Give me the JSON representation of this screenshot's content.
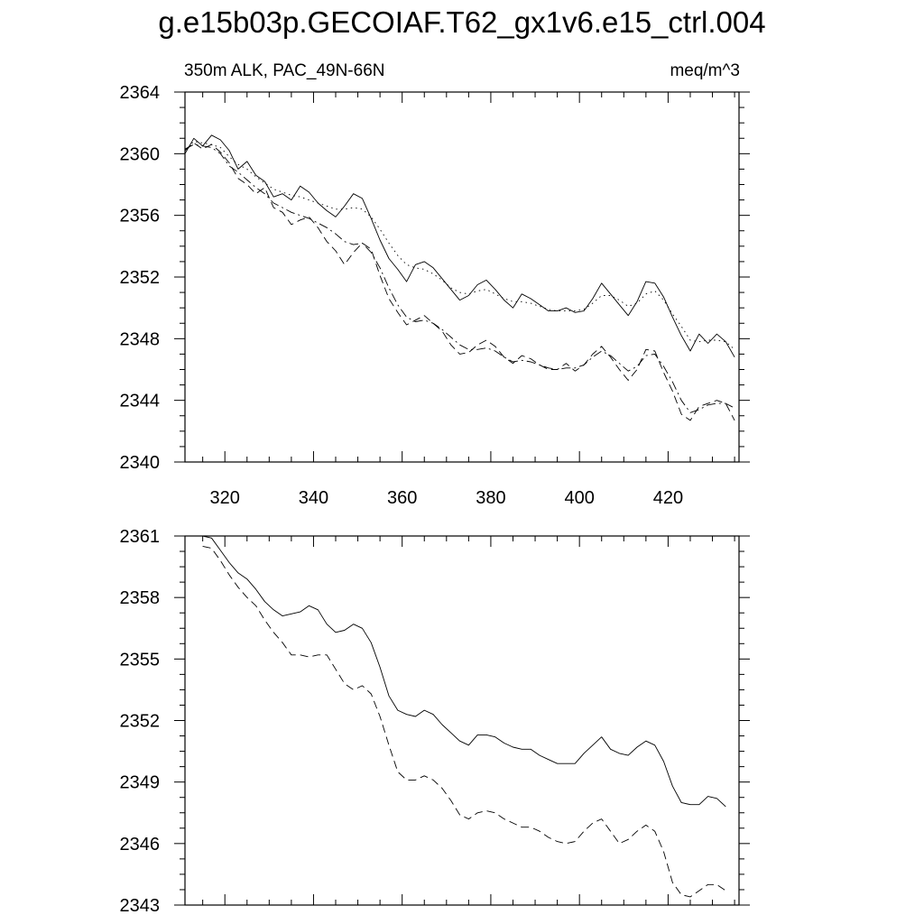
{
  "title": "g.e15b03p.GECOIAF.T62_gx1v6.e15_ctrl.004",
  "chart_data": [
    {
      "type": "line",
      "subtitle_left": "350m ALK, PAC_49N-66N",
      "subtitle_right": "meq/m^3",
      "xlim": [
        311,
        436
      ],
      "ylim": [
        2340,
        2364
      ],
      "xticks": [
        320,
        340,
        360,
        380,
        400,
        420
      ],
      "xtick_labels": [
        "320",
        "340",
        "360",
        "380",
        "400",
        "420"
      ],
      "yticks": [
        2340,
        2344,
        2348,
        2352,
        2356,
        2360,
        2364
      ],
      "ytick_labels": [
        "2340",
        "2344",
        "2348",
        "2352",
        "2356",
        "2360",
        "2364"
      ],
      "x": [
        311,
        313,
        315,
        317,
        319,
        321,
        323,
        325,
        327,
        329,
        331,
        333,
        335,
        337,
        339,
        341,
        343,
        345,
        347,
        349,
        351,
        353,
        355,
        357,
        359,
        361,
        363,
        365,
        367,
        369,
        371,
        373,
        375,
        377,
        379,
        381,
        383,
        385,
        387,
        389,
        391,
        393,
        395,
        397,
        399,
        401,
        403,
        405,
        407,
        409,
        411,
        413,
        415,
        417,
        419,
        421,
        423,
        425,
        427,
        429,
        431,
        433,
        435
      ],
      "series": [
        {
          "style": "solid",
          "values": [
            2360.0,
            2361.0,
            2360.5,
            2361.2,
            2360.9,
            2360.2,
            2359.0,
            2359.5,
            2358.6,
            2358.2,
            2357.2,
            2357.4,
            2357.0,
            2357.9,
            2357.5,
            2356.8,
            2356.3,
            2355.9,
            2356.6,
            2357.4,
            2357.1,
            2355.8,
            2354.4,
            2353.2,
            2352.5,
            2351.7,
            2352.8,
            2353.0,
            2352.6,
            2351.9,
            2351.2,
            2350.5,
            2350.8,
            2351.5,
            2351.8,
            2351.2,
            2350.5,
            2350.0,
            2350.9,
            2350.6,
            2350.2,
            2349.8,
            2349.8,
            2350.0,
            2349.7,
            2349.8,
            2350.6,
            2351.6,
            2350.9,
            2350.2,
            2349.5,
            2350.4,
            2351.7,
            2351.6,
            2350.7,
            2349.4,
            2348.2,
            2347.2,
            2348.3,
            2347.7,
            2348.3,
            2347.8,
            2346.8
          ]
        },
        {
          "style": "dotted",
          "values": [
            2360.2,
            2360.8,
            2360.7,
            2360.6,
            2360.4,
            2359.8,
            2359.3,
            2359.0,
            2358.5,
            2358.1,
            2357.7,
            2357.5,
            2357.3,
            2357.2,
            2357.0,
            2356.8,
            2356.6,
            2356.4,
            2356.4,
            2356.5,
            2356.4,
            2355.9,
            2355.1,
            2354.2,
            2353.4,
            2352.8,
            2352.6,
            2352.5,
            2352.2,
            2351.8,
            2351.3,
            2351.0,
            2350.9,
            2351.1,
            2351.2,
            2350.9,
            2350.6,
            2350.4,
            2350.4,
            2350.3,
            2350.1,
            2349.9,
            2349.8,
            2349.8,
            2349.8,
            2349.9,
            2350.3,
            2350.8,
            2350.8,
            2350.5,
            2350.1,
            2350.3,
            2350.9,
            2351.1,
            2350.5,
            2349.6,
            2348.8,
            2347.9,
            2347.8,
            2347.9,
            2347.9,
            2347.8,
            2347.3
          ]
        },
        {
          "style": "dashed",
          "values": [
            2360.2,
            2360.7,
            2360.3,
            2360.6,
            2360.1,
            2359.4,
            2358.4,
            2358.0,
            2357.4,
            2357.8,
            2356.5,
            2356.2,
            2355.4,
            2355.7,
            2355.9,
            2355.2,
            2354.3,
            2353.7,
            2352.8,
            2353.6,
            2354.2,
            2353.8,
            2352.1,
            2350.6,
            2349.7,
            2348.9,
            2349.2,
            2349.5,
            2349.0,
            2348.5,
            2347.6,
            2347.0,
            2347.1,
            2347.6,
            2347.9,
            2347.5,
            2346.8,
            2346.4,
            2346.9,
            2346.7,
            2346.3,
            2346.0,
            2346.0,
            2346.4,
            2345.9,
            2346.3,
            2347.0,
            2347.5,
            2346.8,
            2346.0,
            2345.3,
            2346.0,
            2347.3,
            2347.2,
            2345.8,
            2344.6,
            2343.1,
            2342.7,
            2343.6,
            2343.8,
            2344.0,
            2343.8,
            2342.7
          ]
        },
        {
          "style": "dashdot",
          "values": [
            2360.3,
            2360.6,
            2360.5,
            2360.4,
            2360.0,
            2359.2,
            2358.8,
            2358.3,
            2357.8,
            2357.4,
            2356.8,
            2356.5,
            2356.2,
            2356.0,
            2355.8,
            2355.5,
            2355.2,
            2354.8,
            2354.3,
            2354.1,
            2354.2,
            2353.6,
            2352.6,
            2351.3,
            2350.2,
            2349.4,
            2349.1,
            2349.2,
            2349.0,
            2348.6,
            2348.1,
            2347.6,
            2347.3,
            2347.3,
            2347.4,
            2347.2,
            2346.8,
            2346.5,
            2346.6,
            2346.5,
            2346.3,
            2346.1,
            2346.0,
            2346.1,
            2346.1,
            2346.3,
            2346.8,
            2347.2,
            2346.9,
            2346.4,
            2345.9,
            2346.2,
            2346.9,
            2347.0,
            2346.2,
            2345.2,
            2344.0,
            2343.2,
            2343.4,
            2343.7,
            2343.8,
            2343.8,
            2343.5
          ]
        }
      ]
    },
    {
      "type": "line",
      "xlim": [
        311,
        436
      ],
      "ylim": [
        2343,
        2361
      ],
      "xticks": [
        320,
        340,
        360,
        380,
        400,
        420
      ],
      "yticks": [
        2343,
        2346,
        2349,
        2352,
        2355,
        2358,
        2361
      ],
      "ytick_labels": [
        "2343",
        "2346",
        "2349",
        "2352",
        "2355",
        "2358",
        "2361"
      ],
      "x": [
        315,
        317,
        319,
        321,
        323,
        325,
        327,
        329,
        331,
        333,
        335,
        337,
        339,
        341,
        343,
        345,
        347,
        349,
        351,
        353,
        355,
        357,
        359,
        361,
        363,
        365,
        367,
        369,
        371,
        373,
        375,
        377,
        379,
        381,
        383,
        385,
        387,
        389,
        391,
        393,
        395,
        397,
        399,
        401,
        403,
        405,
        407,
        409,
        411,
        413,
        415,
        417,
        419,
        421,
        423,
        425,
        427,
        429,
        431,
        433
      ],
      "series": [
        {
          "style": "solid",
          "values": [
            2361.0,
            2360.9,
            2360.3,
            2359.7,
            2359.2,
            2358.9,
            2358.4,
            2357.8,
            2357.4,
            2357.1,
            2357.2,
            2357.3,
            2357.6,
            2357.4,
            2356.7,
            2356.3,
            2356.4,
            2356.7,
            2356.5,
            2355.8,
            2354.6,
            2353.2,
            2352.5,
            2352.3,
            2352.2,
            2352.5,
            2352.3,
            2351.8,
            2351.4,
            2351.0,
            2350.8,
            2351.3,
            2351.3,
            2351.2,
            2350.9,
            2350.7,
            2350.6,
            2350.6,
            2350.3,
            2350.1,
            2349.9,
            2349.9,
            2349.9,
            2350.4,
            2350.8,
            2351.2,
            2350.6,
            2350.4,
            2350.3,
            2350.7,
            2351.0,
            2350.8,
            2350.0,
            2348.8,
            2348.0,
            2347.9,
            2347.9,
            2348.3,
            2348.2,
            2347.8
          ]
        },
        {
          "style": "dashed",
          "values": [
            2360.5,
            2360.4,
            2359.8,
            2359.1,
            2358.5,
            2358.0,
            2357.6,
            2356.9,
            2356.3,
            2355.8,
            2355.2,
            2355.2,
            2355.1,
            2355.2,
            2355.2,
            2354.5,
            2353.8,
            2353.5,
            2353.7,
            2353.3,
            2352.2,
            2350.8,
            2349.5,
            2349.1,
            2349.1,
            2349.3,
            2349.1,
            2348.7,
            2348.1,
            2347.4,
            2347.2,
            2347.5,
            2347.6,
            2347.5,
            2347.2,
            2347.0,
            2346.8,
            2346.8,
            2346.6,
            2346.3,
            2346.1,
            2346.0,
            2346.1,
            2346.6,
            2347.0,
            2347.2,
            2346.6,
            2346.0,
            2346.2,
            2346.6,
            2346.9,
            2346.6,
            2345.6,
            2344.1,
            2343.5,
            2343.4,
            2343.7,
            2344.0,
            2344.0,
            2343.7
          ]
        }
      ]
    }
  ]
}
